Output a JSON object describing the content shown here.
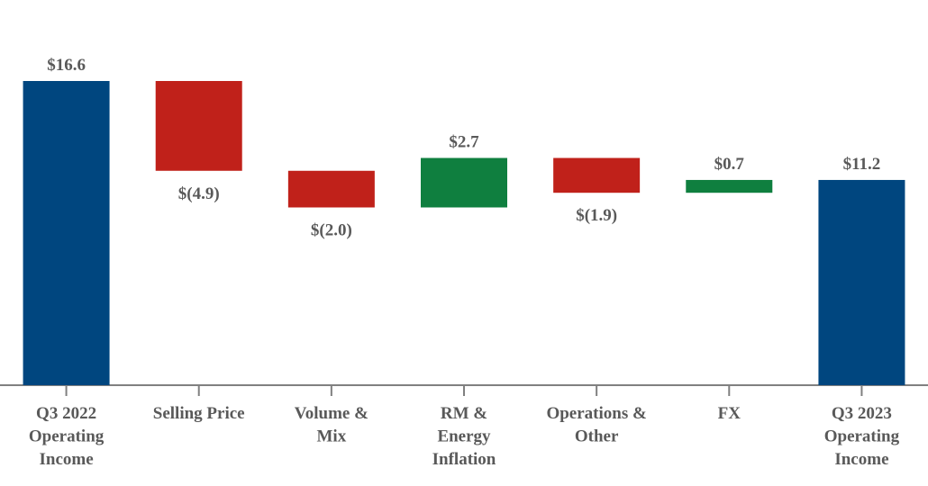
{
  "chart_data": {
    "type": "waterfall",
    "categories": [
      [
        "Q3 2022",
        "Operating",
        "Income"
      ],
      [
        "Selling Price"
      ],
      [
        "Volume &",
        "Mix"
      ],
      [
        "RM &",
        "Energy",
        "Inflation"
      ],
      [
        "Operations &",
        "Other"
      ],
      [
        "FX"
      ],
      [
        "Q3 2023",
        "Operating",
        "Income"
      ]
    ],
    "values": [
      16.6,
      -4.9,
      -2.0,
      2.7,
      -1.9,
      0.7,
      11.2
    ],
    "value_labels": [
      "$16.6",
      "$(4.9)",
      "$(2.0)",
      "$2.7",
      "$(1.9)",
      "$0.7",
      "$11.2"
    ],
    "is_total": [
      true,
      false,
      false,
      false,
      false,
      false,
      true
    ],
    "colors": {
      "total": "#00467f",
      "increase": "#0f7f3f",
      "decrease": "#c0211a"
    }
  }
}
